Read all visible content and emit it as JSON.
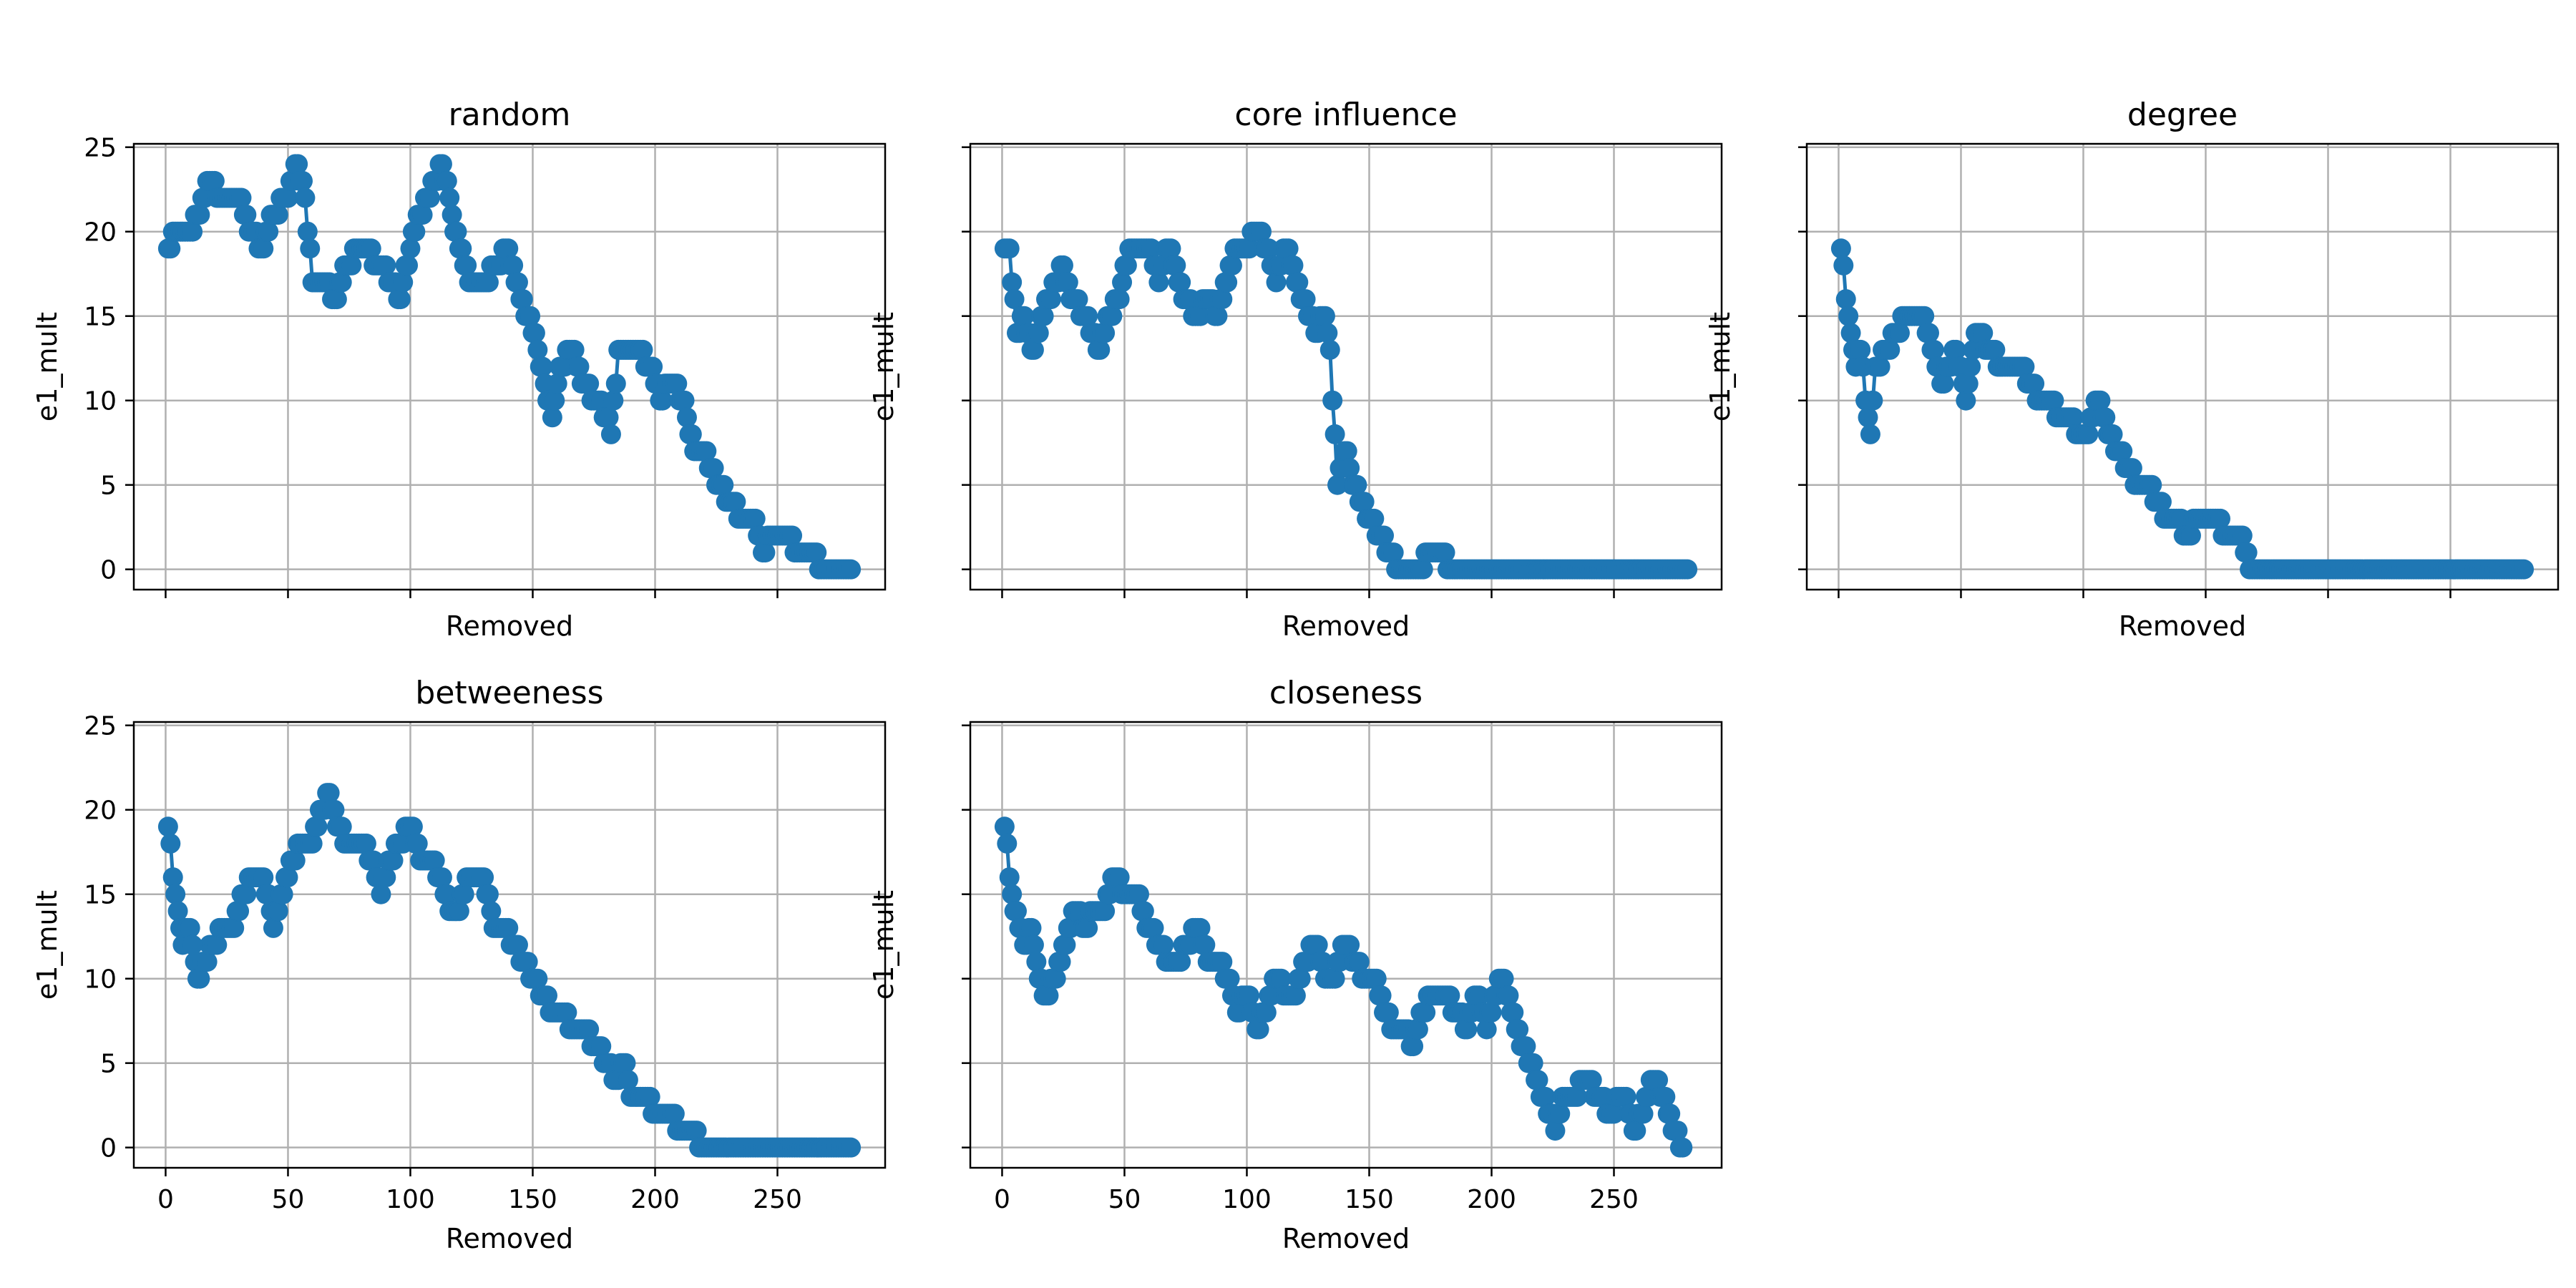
{
  "chart_data": [
    {
      "type": "line",
      "title": "random",
      "xlabel": "Removed",
      "ylabel": "e1_mult",
      "xlim": [
        -13,
        294
      ],
      "ylim": [
        -1.2,
        25.2
      ],
      "xticks": [
        0,
        50,
        100,
        150,
        200,
        250
      ],
      "yticks": [
        0,
        5,
        10,
        15,
        20,
        25
      ],
      "show_xticklabels": false,
      "show_yticklabels": true,
      "grid": true,
      "knots": [
        [
          1,
          19
        ],
        [
          5,
          20
        ],
        [
          10,
          20
        ],
        [
          14,
          21
        ],
        [
          18,
          23
        ],
        [
          22,
          22
        ],
        [
          30,
          22
        ],
        [
          34,
          20
        ],
        [
          40,
          19
        ],
        [
          44,
          21
        ],
        [
          50,
          22
        ],
        [
          54,
          24
        ],
        [
          57,
          22
        ],
        [
          60,
          17
        ],
        [
          65,
          17
        ],
        [
          70,
          16
        ],
        [
          74,
          18
        ],
        [
          80,
          19
        ],
        [
          88,
          18
        ],
        [
          93,
          17
        ],
        [
          96,
          16
        ],
        [
          100,
          19
        ],
        [
          104,
          21
        ],
        [
          110,
          23
        ],
        [
          113,
          24
        ],
        [
          117,
          21
        ],
        [
          120,
          19
        ],
        [
          124,
          17
        ],
        [
          130,
          17
        ],
        [
          136,
          18
        ],
        [
          140,
          19
        ],
        [
          143,
          17
        ],
        [
          148,
          15
        ],
        [
          152,
          13
        ],
        [
          155,
          11
        ],
        [
          158,
          9
        ],
        [
          161,
          12
        ],
        [
          166,
          13
        ],
        [
          170,
          11
        ],
        [
          176,
          10
        ],
        [
          180,
          9
        ],
        [
          182,
          8
        ],
        [
          185,
          13
        ],
        [
          192,
          13
        ],
        [
          198,
          12
        ],
        [
          202,
          10
        ],
        [
          206,
          11
        ],
        [
          212,
          10
        ],
        [
          214,
          8
        ],
        [
          217,
          7
        ],
        [
          220,
          7
        ],
        [
          226,
          5
        ],
        [
          231,
          4
        ],
        [
          236,
          3
        ],
        [
          240,
          3
        ],
        [
          244,
          1
        ],
        [
          248,
          2
        ],
        [
          254,
          2
        ],
        [
          258,
          1
        ],
        [
          264,
          1
        ],
        [
          268,
          0
        ],
        [
          280,
          0
        ]
      ]
    },
    {
      "type": "line",
      "title": "core influence",
      "xlabel": "Removed",
      "ylabel": "e1_mult",
      "xlim": [
        -13,
        294
      ],
      "ylim": [
        -1.2,
        25.2
      ],
      "xticks": [
        0,
        50,
        100,
        150,
        200,
        250
      ],
      "yticks": [
        0,
        5,
        10,
        15,
        20,
        25
      ],
      "show_xticklabels": false,
      "show_yticklabels": false,
      "grid": true,
      "knots": [
        [
          1,
          19
        ],
        [
          3,
          19
        ],
        [
          4,
          17
        ],
        [
          6,
          14
        ],
        [
          9,
          15
        ],
        [
          12,
          13
        ],
        [
          15,
          14
        ],
        [
          19,
          16
        ],
        [
          22,
          17
        ],
        [
          25,
          18
        ],
        [
          28,
          16
        ],
        [
          34,
          15
        ],
        [
          37,
          14
        ],
        [
          40,
          13
        ],
        [
          44,
          15
        ],
        [
          48,
          16
        ],
        [
          50,
          18
        ],
        [
          54,
          19
        ],
        [
          60,
          19
        ],
        [
          64,
          17
        ],
        [
          68,
          19
        ],
        [
          74,
          16
        ],
        [
          80,
          15
        ],
        [
          84,
          16
        ],
        [
          88,
          15
        ],
        [
          92,
          17
        ],
        [
          96,
          19
        ],
        [
          100,
          19
        ],
        [
          104,
          20
        ],
        [
          108,
          19
        ],
        [
          112,
          17
        ],
        [
          116,
          19
        ],
        [
          122,
          16
        ],
        [
          126,
          15
        ],
        [
          128,
          14
        ],
        [
          132,
          15
        ],
        [
          134,
          13
        ],
        [
          137,
          5
        ],
        [
          139,
          6
        ],
        [
          141,
          7
        ],
        [
          143,
          5
        ],
        [
          147,
          4
        ],
        [
          150,
          3
        ],
        [
          154,
          2
        ],
        [
          158,
          1
        ],
        [
          162,
          0
        ],
        [
          172,
          0
        ],
        [
          174,
          1
        ],
        [
          180,
          1
        ],
        [
          182,
          0
        ],
        [
          280,
          0
        ]
      ]
    },
    {
      "type": "line",
      "title": "degree",
      "xlabel": "Removed",
      "ylabel": "e1_mult",
      "xlim": [
        -13,
        294
      ],
      "ylim": [
        -1.2,
        25.2
      ],
      "xticks": [
        0,
        50,
        100,
        150,
        200,
        250
      ],
      "yticks": [
        0,
        5,
        10,
        15,
        20,
        25
      ],
      "show_xticklabels": false,
      "show_yticklabels": false,
      "grid": true,
      "knots": [
        [
          1,
          19
        ],
        [
          3,
          16
        ],
        [
          5,
          14
        ],
        [
          7,
          12
        ],
        [
          9,
          13
        ],
        [
          11,
          10
        ],
        [
          13,
          8
        ],
        [
          15,
          12
        ],
        [
          20,
          13
        ],
        [
          24,
          14
        ],
        [
          28,
          15
        ],
        [
          34,
          15
        ],
        [
          38,
          13
        ],
        [
          42,
          11
        ],
        [
          48,
          13
        ],
        [
          52,
          10
        ],
        [
          56,
          14
        ],
        [
          62,
          13
        ],
        [
          66,
          12
        ],
        [
          70,
          12
        ],
        [
          74,
          12
        ],
        [
          78,
          11
        ],
        [
          82,
          10
        ],
        [
          86,
          10
        ],
        [
          90,
          9
        ],
        [
          94,
          9
        ],
        [
          98,
          8
        ],
        [
          102,
          8
        ],
        [
          106,
          10
        ],
        [
          110,
          8
        ],
        [
          114,
          7
        ],
        [
          118,
          6
        ],
        [
          122,
          5
        ],
        [
          126,
          5
        ],
        [
          130,
          4
        ],
        [
          134,
          3
        ],
        [
          138,
          3
        ],
        [
          142,
          2
        ],
        [
          148,
          3
        ],
        [
          154,
          3
        ],
        [
          158,
          2
        ],
        [
          164,
          2
        ],
        [
          168,
          0
        ],
        [
          280,
          0
        ]
      ]
    },
    {
      "type": "line",
      "title": "betweeness",
      "xlabel": "Removed",
      "ylabel": "e1_mult",
      "xlim": [
        -13,
        294
      ],
      "ylim": [
        -1.2,
        25.2
      ],
      "xticks": [
        0,
        50,
        100,
        150,
        200,
        250
      ],
      "yticks": [
        0,
        5,
        10,
        15,
        20,
        25
      ],
      "show_xticklabels": true,
      "show_yticklabels": true,
      "grid": true,
      "knots": [
        [
          1,
          19
        ],
        [
          3,
          16
        ],
        [
          5,
          14
        ],
        [
          7,
          12
        ],
        [
          9,
          13
        ],
        [
          11,
          12
        ],
        [
          13,
          10
        ],
        [
          16,
          11
        ],
        [
          20,
          12
        ],
        [
          24,
          13
        ],
        [
          28,
          13
        ],
        [
          32,
          15
        ],
        [
          36,
          16
        ],
        [
          40,
          16
        ],
        [
          44,
          13
        ],
        [
          48,
          15
        ],
        [
          52,
          17
        ],
        [
          56,
          18
        ],
        [
          60,
          18
        ],
        [
          64,
          20
        ],
        [
          67,
          21
        ],
        [
          70,
          19
        ],
        [
          74,
          18
        ],
        [
          80,
          18
        ],
        [
          84,
          17
        ],
        [
          88,
          15
        ],
        [
          92,
          17
        ],
        [
          96,
          18
        ],
        [
          100,
          19
        ],
        [
          104,
          17
        ],
        [
          108,
          17
        ],
        [
          112,
          16
        ],
        [
          116,
          14
        ],
        [
          120,
          14
        ],
        [
          124,
          16
        ],
        [
          130,
          16
        ],
        [
          134,
          13
        ],
        [
          138,
          13
        ],
        [
          142,
          12
        ],
        [
          146,
          11
        ],
        [
          150,
          10
        ],
        [
          154,
          9
        ],
        [
          158,
          8
        ],
        [
          162,
          8
        ],
        [
          166,
          7
        ],
        [
          170,
          7
        ],
        [
          176,
          6
        ],
        [
          180,
          5
        ],
        [
          184,
          4
        ],
        [
          188,
          5
        ],
        [
          190,
          3
        ],
        [
          196,
          3
        ],
        [
          200,
          2
        ],
        [
          206,
          2
        ],
        [
          210,
          1
        ],
        [
          214,
          1
        ],
        [
          220,
          0
        ],
        [
          280,
          0
        ]
      ]
    },
    {
      "type": "line",
      "title": "closeness",
      "xlabel": "Removed",
      "ylabel": "e1_mult",
      "xlim": [
        -13,
        294
      ],
      "ylim": [
        -1.2,
        25.2
      ],
      "xticks": [
        0,
        50,
        100,
        150,
        200,
        250
      ],
      "yticks": [
        0,
        5,
        10,
        15,
        20,
        25
      ],
      "show_xticklabels": true,
      "show_yticklabels": false,
      "grid": true,
      "knots": [
        [
          1,
          19
        ],
        [
          3,
          16
        ],
        [
          5,
          14
        ],
        [
          7,
          13
        ],
        [
          9,
          12
        ],
        [
          12,
          13
        ],
        [
          15,
          10
        ],
        [
          18,
          9
        ],
        [
          22,
          10
        ],
        [
          26,
          12
        ],
        [
          30,
          14
        ],
        [
          34,
          13
        ],
        [
          38,
          14
        ],
        [
          42,
          14
        ],
        [
          46,
          16
        ],
        [
          50,
          15
        ],
        [
          55,
          15
        ],
        [
          60,
          13
        ],
        [
          64,
          12
        ],
        [
          68,
          11
        ],
        [
          72,
          11
        ],
        [
          76,
          12
        ],
        [
          80,
          13
        ],
        [
          84,
          11
        ],
        [
          88,
          11
        ],
        [
          92,
          10
        ],
        [
          96,
          8
        ],
        [
          100,
          9
        ],
        [
          104,
          7
        ],
        [
          108,
          8
        ],
        [
          112,
          10
        ],
        [
          116,
          9
        ],
        [
          120,
          9
        ],
        [
          124,
          11
        ],
        [
          128,
          12
        ],
        [
          132,
          10
        ],
        [
          136,
          10
        ],
        [
          140,
          12
        ],
        [
          144,
          11
        ],
        [
          148,
          10
        ],
        [
          152,
          10
        ],
        [
          156,
          8
        ],
        [
          160,
          7
        ],
        [
          164,
          7
        ],
        [
          168,
          6
        ],
        [
          172,
          8
        ],
        [
          176,
          9
        ],
        [
          180,
          9
        ],
        [
          186,
          8
        ],
        [
          190,
          7
        ],
        [
          194,
          9
        ],
        [
          198,
          7
        ],
        [
          204,
          10
        ],
        [
          208,
          8
        ],
        [
          212,
          6
        ],
        [
          216,
          5
        ],
        [
          220,
          3
        ],
        [
          224,
          2
        ],
        [
          226,
          1
        ],
        [
          230,
          3
        ],
        [
          234,
          3
        ],
        [
          238,
          4
        ],
        [
          244,
          3
        ],
        [
          248,
          2
        ],
        [
          254,
          3
        ],
        [
          258,
          1
        ],
        [
          262,
          2
        ],
        [
          266,
          4
        ],
        [
          270,
          3
        ],
        [
          274,
          1
        ],
        [
          278,
          0
        ]
      ]
    }
  ]
}
